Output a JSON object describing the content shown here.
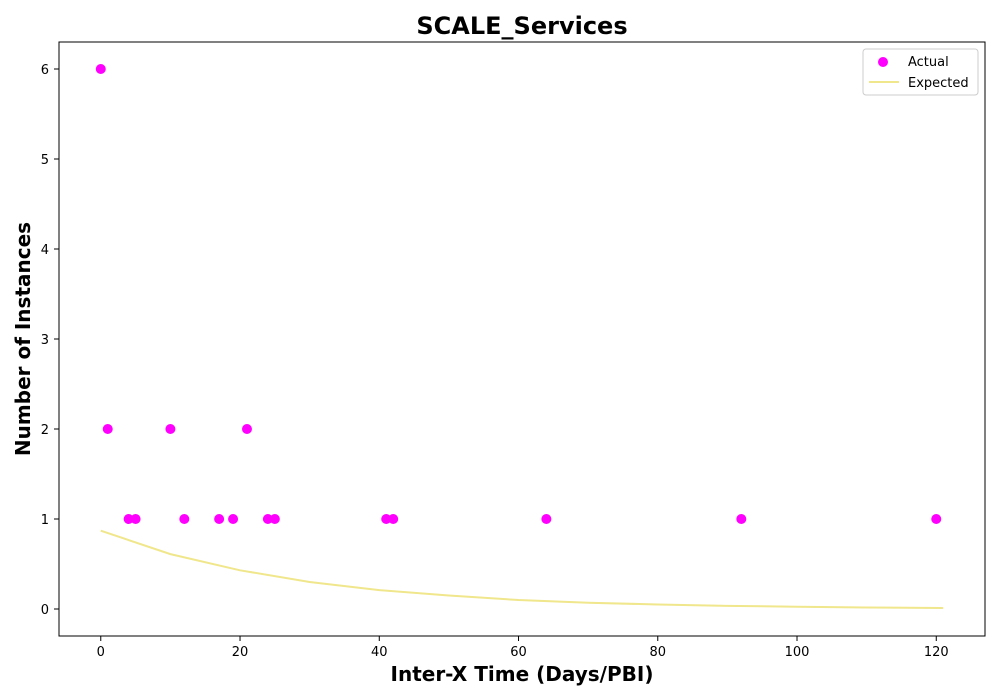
{
  "chart_data": {
    "type": "scatter",
    "title": "SCALE_Services",
    "xlabel": "Inter-X Time (Days/PBI)",
    "ylabel": "Number of Instances",
    "xlim": [
      -6,
      127
    ],
    "ylim": [
      -0.3,
      6.3
    ],
    "xticks": [
      0,
      20,
      40,
      60,
      80,
      100,
      120
    ],
    "yticks": [
      0,
      1,
      2,
      3,
      4,
      5,
      6
    ],
    "grid": false,
    "legend_position": "top-right",
    "series": [
      {
        "name": "Actual",
        "kind": "scatter",
        "color": "#ff00ff",
        "x": [
          0,
          1,
          4,
          5,
          10,
          12,
          17,
          19,
          21,
          24,
          25,
          41,
          42,
          64,
          92,
          120
        ],
        "y": [
          6,
          2,
          1,
          1,
          2,
          1,
          1,
          1,
          2,
          1,
          1,
          1,
          1,
          1,
          1,
          1
        ]
      },
      {
        "name": "Expected",
        "kind": "line",
        "color": "#f0e68c",
        "x": [
          0,
          10,
          20,
          30,
          40,
          50,
          60,
          70,
          80,
          90,
          100,
          110,
          121
        ],
        "y": [
          0.87,
          0.61,
          0.43,
          0.3,
          0.21,
          0.15,
          0.1,
          0.07,
          0.05,
          0.035,
          0.025,
          0.017,
          0.011
        ]
      }
    ]
  }
}
